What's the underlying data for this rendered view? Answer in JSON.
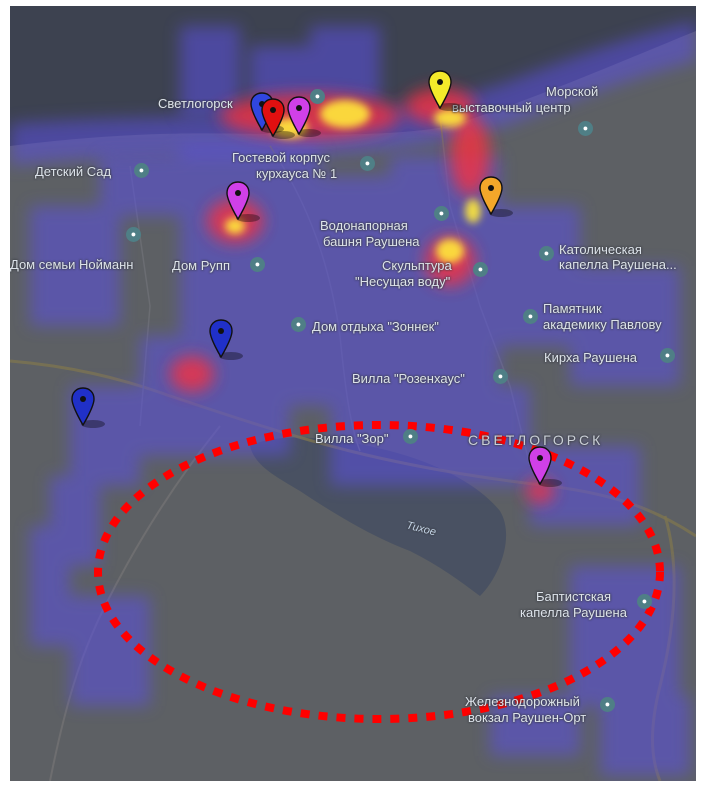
{
  "labels": {
    "svetlogorsk_top": "Светлогорск",
    "morskoy1": "Морской",
    "morskoy2": "выставочный центр",
    "detsad": "Детский Сад",
    "gostevoy1": "Гостевой корпус",
    "gostevoy2": "курхауса № 1",
    "vodonap1": "Водонапорная",
    "vodonap2": "башня Раушена",
    "kathol1": "Католическая",
    "kathol2": "капелла Раушена...",
    "dom_semi": "Дом семьи Нойманн",
    "dom_rupp": "Дом Рупп",
    "skulpt1": "Скульптура",
    "skulpt2": "\"Несущая воду\"",
    "pamyat1": "Памятник",
    "pamyat2": "академику Павлову",
    "dom_otdyha": "Дом отдыха \"Зоннек\"",
    "kirha": "Кирха Раушена",
    "villa_rosen": "Вилла \"Розенхаус\"",
    "villa_zor": "Вилла \"Зор\"",
    "city": "Светлогорск",
    "tihoe": "Тихое",
    "baptist1": "Баптистская",
    "baptist2": "капелла Раушена",
    "vokzal1": "Железнодорожный",
    "vokzal2": "вокзал Раушен-Орт"
  },
  "icons": {
    "poi": "place-marker-icon",
    "pin": "map-pin-icon"
  },
  "colors": {
    "map_bg": "#5d6064",
    "sea": "#3d4250",
    "heat_low": "#5a4fe0",
    "heat_mid": "#ff2f3a",
    "heat_high": "#ffe93a",
    "ellipse": "#ff0000"
  },
  "pins": [
    {
      "name": "pin-blue-top",
      "color": "#3046e0"
    },
    {
      "name": "pin-red",
      "color": "#e01010"
    },
    {
      "name": "pin-magenta-top",
      "color": "#d040e8"
    },
    {
      "name": "pin-yellow",
      "color": "#f4ea2a"
    },
    {
      "name": "pin-orange",
      "color": "#f3a72a"
    },
    {
      "name": "pin-magenta-mid",
      "color": "#d040e8"
    },
    {
      "name": "pin-blue-mid",
      "color": "#2030c8"
    },
    {
      "name": "pin-blue-left",
      "color": "#2030c8"
    },
    {
      "name": "pin-magenta-bottom",
      "color": "#d040e8"
    }
  ]
}
